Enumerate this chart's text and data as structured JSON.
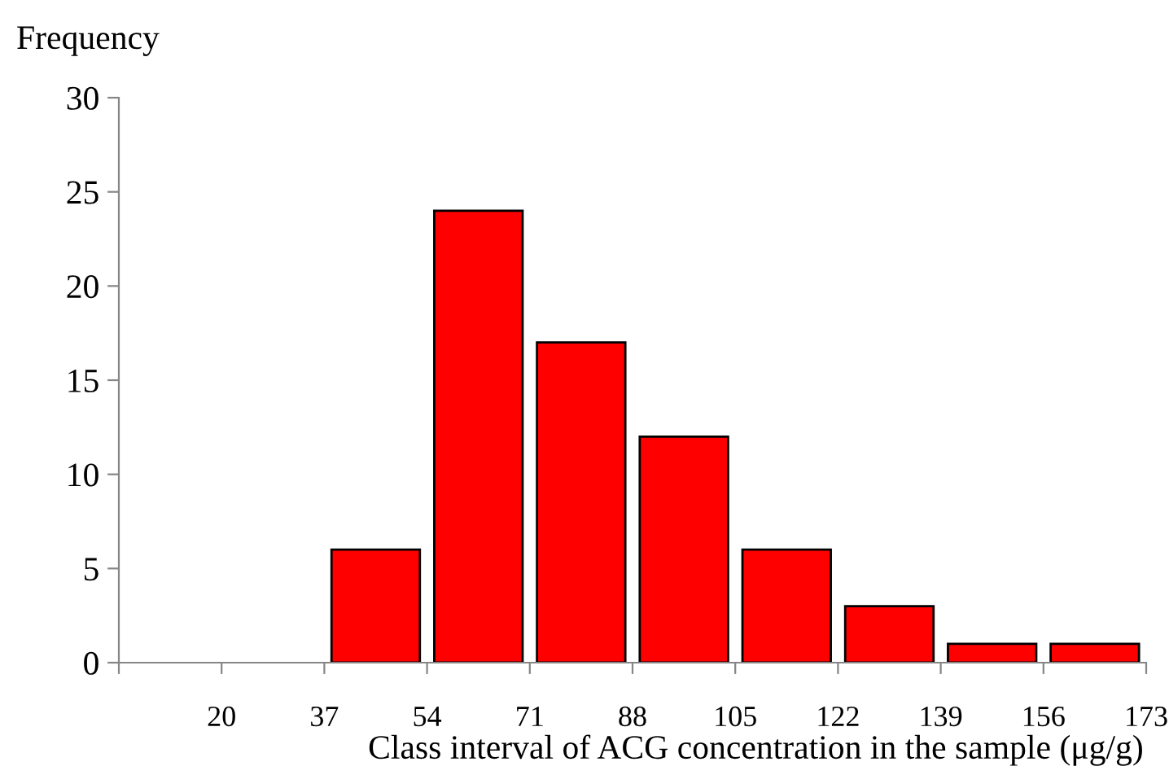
{
  "chart_data": {
    "type": "histogram",
    "ylabel": "Frequency",
    "xlabel": "Class interval of ACG concentration in the sample (μg/g)",
    "bins": [
      3,
      20,
      37,
      54,
      71,
      88,
      105,
      122,
      139,
      156,
      173
    ],
    "values": [
      0,
      0,
      6,
      24,
      17,
      12,
      6,
      3,
      1,
      1
    ],
    "color": "#ff0000",
    "xlim": [
      3,
      173
    ],
    "xticks": [
      {
        "value": 3,
        "label": null
      },
      20,
      37,
      54,
      71,
      88,
      105,
      122,
      139,
      156,
      173
    ],
    "ylim": [
      0,
      30
    ],
    "yticks": [
      0,
      5,
      10,
      15,
      20,
      25,
      30
    ],
    "grid": false
  }
}
